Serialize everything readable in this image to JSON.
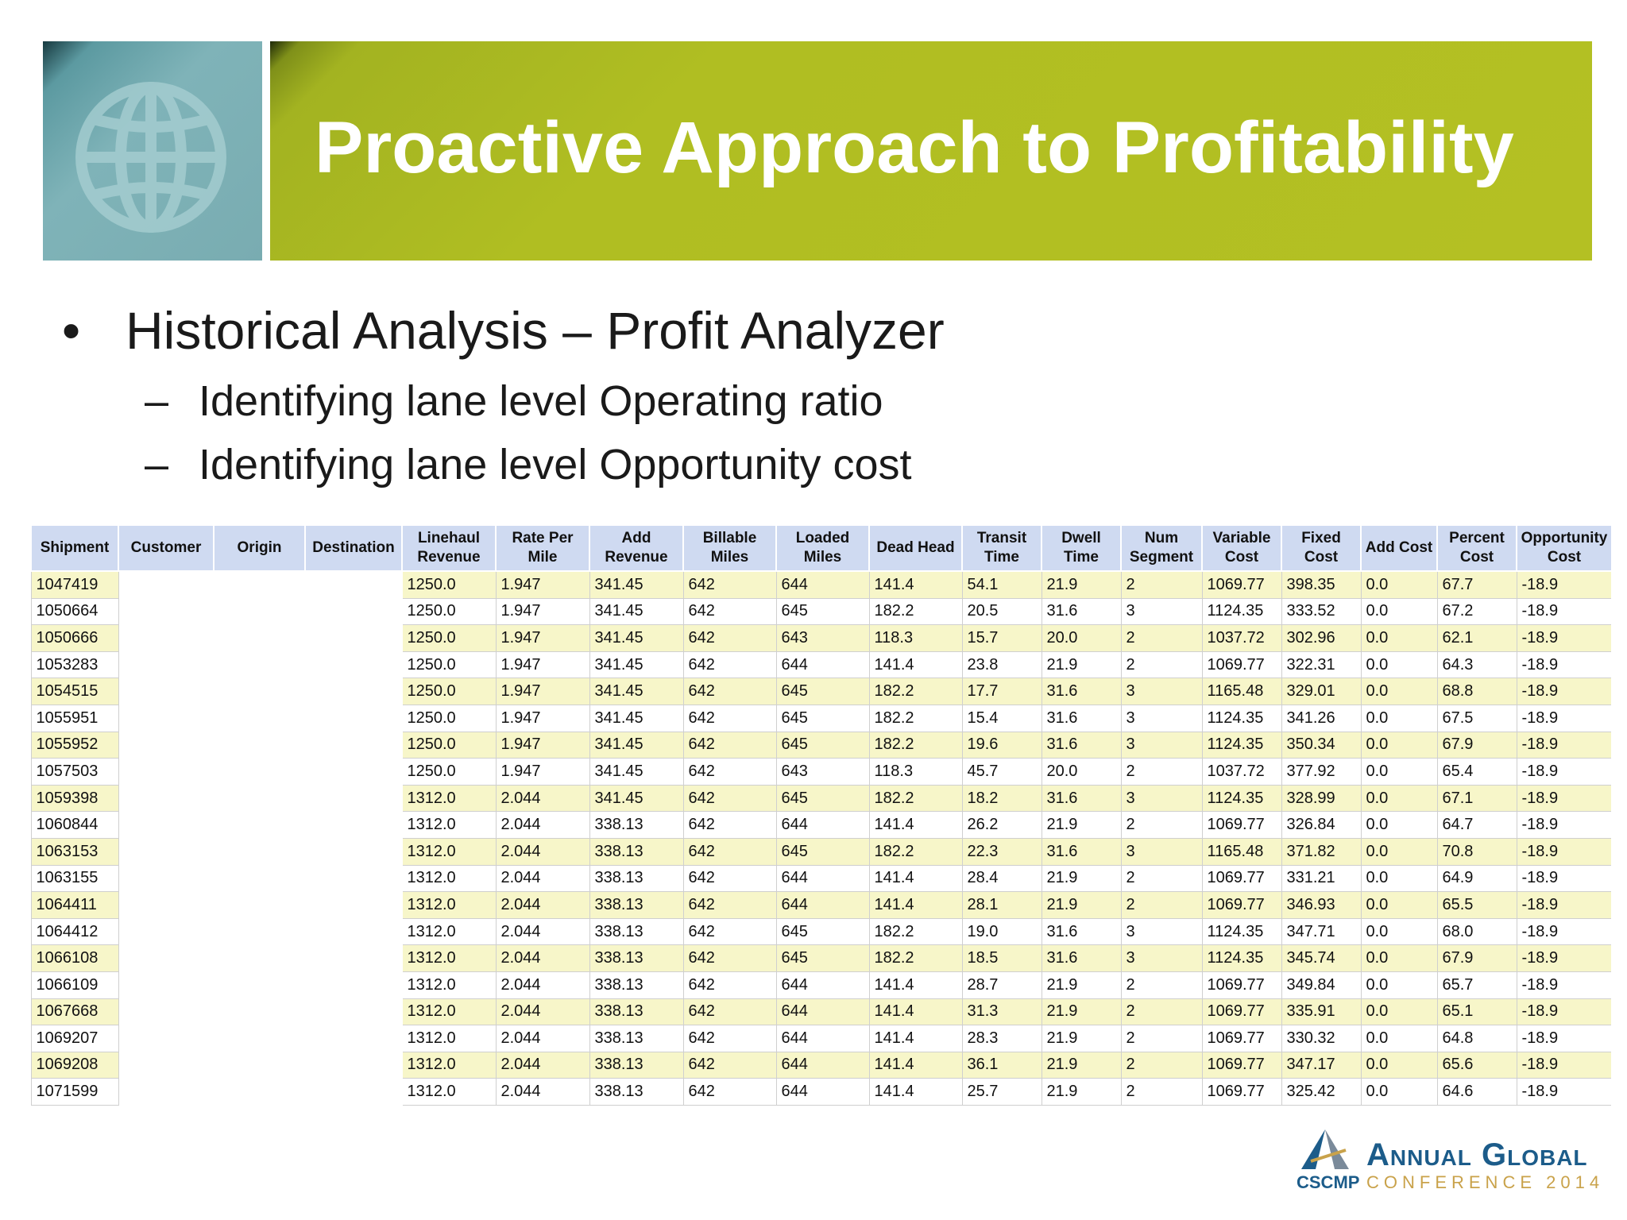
{
  "slide": {
    "title": "Proactive Approach to Profitability",
    "bullet": "Historical Analysis – Profit Analyzer",
    "subbullets": [
      "Identifying lane level Operating ratio",
      "Identifying lane level Opportunity cost"
    ],
    "bullet_symbol": "•",
    "dash_symbol": "–"
  },
  "colors": {
    "title_bar": "#b4c023",
    "logo_box": "#79acb1",
    "header_bg": "#cfdaf1",
    "row_highlight": "#f7f6c9",
    "footer_blue": "#1c5c8a",
    "footer_gold": "#c9a24a"
  },
  "table": {
    "headers": [
      [
        "Shipment"
      ],
      [
        "Customer"
      ],
      [
        "Origin"
      ],
      [
        "Destination"
      ],
      [
        "Linehaul",
        "Revenue"
      ],
      [
        "Rate Per",
        "Mile"
      ],
      [
        "Add",
        "Revenue"
      ],
      [
        "Billable",
        "Miles"
      ],
      [
        "Loaded",
        "Miles"
      ],
      [
        "Dead Head"
      ],
      [
        "Transit",
        "Time"
      ],
      [
        "Dwell",
        "Time"
      ],
      [
        "Num",
        "Segment"
      ],
      [
        "Variable",
        "Cost"
      ],
      [
        "Fixed",
        "Cost"
      ],
      [
        "Add Cost"
      ],
      [
        "Percent",
        "Cost"
      ],
      [
        "Opportunity",
        "Cost"
      ]
    ],
    "rows": [
      [
        "1047419",
        "",
        "",
        "",
        "1250.0",
        "1.947",
        "341.45",
        "642",
        "644",
        "141.4",
        "54.1",
        "21.9",
        "2",
        "1069.77",
        "398.35",
        "0.0",
        "67.7",
        "-18.9"
      ],
      [
        "1050664",
        "",
        "",
        "",
        "1250.0",
        "1.947",
        "341.45",
        "642",
        "645",
        "182.2",
        "20.5",
        "31.6",
        "3",
        "1124.35",
        "333.52",
        "0.0",
        "67.2",
        "-18.9"
      ],
      [
        "1050666",
        "",
        "",
        "",
        "1250.0",
        "1.947",
        "341.45",
        "642",
        "643",
        "118.3",
        "15.7",
        "20.0",
        "2",
        "1037.72",
        "302.96",
        "0.0",
        "62.1",
        "-18.9"
      ],
      [
        "1053283",
        "",
        "",
        "",
        "1250.0",
        "1.947",
        "341.45",
        "642",
        "644",
        "141.4",
        "23.8",
        "21.9",
        "2",
        "1069.77",
        "322.31",
        "0.0",
        "64.3",
        "-18.9"
      ],
      [
        "1054515",
        "",
        "",
        "",
        "1250.0",
        "1.947",
        "341.45",
        "642",
        "645",
        "182.2",
        "17.7",
        "31.6",
        "3",
        "1165.48",
        "329.01",
        "0.0",
        "68.8",
        "-18.9"
      ],
      [
        "1055951",
        "",
        "",
        "",
        "1250.0",
        "1.947",
        "341.45",
        "642",
        "645",
        "182.2",
        "15.4",
        "31.6",
        "3",
        "1124.35",
        "341.26",
        "0.0",
        "67.5",
        "-18.9"
      ],
      [
        "1055952",
        "",
        "",
        "",
        "1250.0",
        "1.947",
        "341.45",
        "642",
        "645",
        "182.2",
        "19.6",
        "31.6",
        "3",
        "1124.35",
        "350.34",
        "0.0",
        "67.9",
        "-18.9"
      ],
      [
        "1057503",
        "",
        "",
        "",
        "1250.0",
        "1.947",
        "341.45",
        "642",
        "643",
        "118.3",
        "45.7",
        "20.0",
        "2",
        "1037.72",
        "377.92",
        "0.0",
        "65.4",
        "-18.9"
      ],
      [
        "1059398",
        "",
        "",
        "",
        "1312.0",
        "2.044",
        "341.45",
        "642",
        "645",
        "182.2",
        "18.2",
        "31.6",
        "3",
        "1124.35",
        "328.99",
        "0.0",
        "67.1",
        "-18.9"
      ],
      [
        "1060844",
        "",
        "",
        "",
        "1312.0",
        "2.044",
        "338.13",
        "642",
        "644",
        "141.4",
        "26.2",
        "21.9",
        "2",
        "1069.77",
        "326.84",
        "0.0",
        "64.7",
        "-18.9"
      ],
      [
        "1063153",
        "",
        "",
        "",
        "1312.0",
        "2.044",
        "338.13",
        "642",
        "645",
        "182.2",
        "22.3",
        "31.6",
        "3",
        "1165.48",
        "371.82",
        "0.0",
        "70.8",
        "-18.9"
      ],
      [
        "1063155",
        "",
        "",
        "",
        "1312.0",
        "2.044",
        "338.13",
        "642",
        "644",
        "141.4",
        "28.4",
        "21.9",
        "2",
        "1069.77",
        "331.21",
        "0.0",
        "64.9",
        "-18.9"
      ],
      [
        "1064411",
        "",
        "",
        "",
        "1312.0",
        "2.044",
        "338.13",
        "642",
        "644",
        "141.4",
        "28.1",
        "21.9",
        "2",
        "1069.77",
        "346.93",
        "0.0",
        "65.5",
        "-18.9"
      ],
      [
        "1064412",
        "",
        "",
        "",
        "1312.0",
        "2.044",
        "338.13",
        "642",
        "645",
        "182.2",
        "19.0",
        "31.6",
        "3",
        "1124.35",
        "347.71",
        "0.0",
        "68.0",
        "-18.9"
      ],
      [
        "1066108",
        "",
        "",
        "",
        "1312.0",
        "2.044",
        "338.13",
        "642",
        "645",
        "182.2",
        "18.5",
        "31.6",
        "3",
        "1124.35",
        "345.74",
        "0.0",
        "67.9",
        "-18.9"
      ],
      [
        "1066109",
        "",
        "",
        "",
        "1312.0",
        "2.044",
        "338.13",
        "642",
        "644",
        "141.4",
        "28.7",
        "21.9",
        "2",
        "1069.77",
        "349.84",
        "0.0",
        "65.7",
        "-18.9"
      ],
      [
        "1067668",
        "",
        "",
        "",
        "1312.0",
        "2.044",
        "338.13",
        "642",
        "644",
        "141.4",
        "31.3",
        "21.9",
        "2",
        "1069.77",
        "335.91",
        "0.0",
        "65.1",
        "-18.9"
      ],
      [
        "1069207",
        "",
        "",
        "",
        "1312.0",
        "2.044",
        "338.13",
        "642",
        "644",
        "141.4",
        "28.3",
        "21.9",
        "2",
        "1069.77",
        "330.32",
        "0.0",
        "64.8",
        "-18.9"
      ],
      [
        "1069208",
        "",
        "",
        "",
        "1312.0",
        "2.044",
        "338.13",
        "642",
        "644",
        "141.4",
        "36.1",
        "21.9",
        "2",
        "1069.77",
        "347.17",
        "0.0",
        "65.6",
        "-18.9"
      ],
      [
        "1071599",
        "",
        "",
        "",
        "1312.0",
        "2.044",
        "338.13",
        "642",
        "644",
        "141.4",
        "25.7",
        "21.9",
        "2",
        "1069.77",
        "325.42",
        "0.0",
        "64.6",
        "-18.9"
      ]
    ]
  },
  "footer_logo": {
    "line1": "Annual Global",
    "brand": "CSCMP",
    "line2": "CONFERENCE 2014",
    "icon": "triangle-logo-icon"
  },
  "decor": {
    "globe_icon": "globe-icon"
  }
}
